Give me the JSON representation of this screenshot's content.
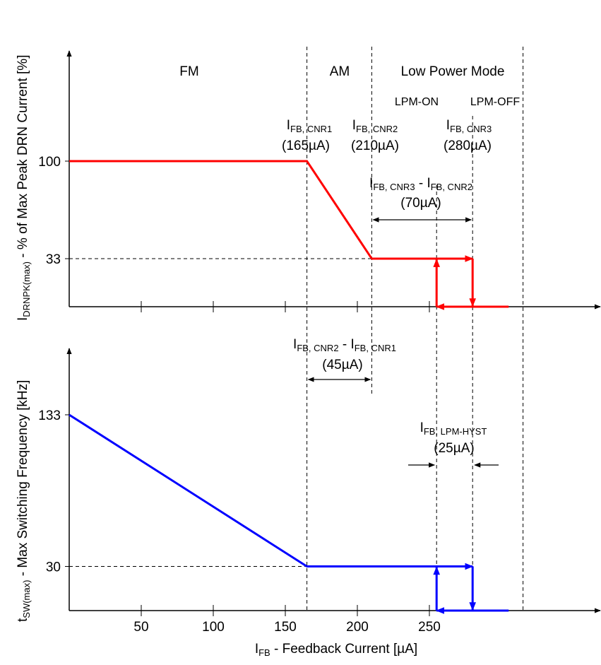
{
  "chart_data": [
    {
      "type": "line",
      "name": "peak-current-panel",
      "ylabel": {
        "main": "I",
        "sub": "DRNPK(max)",
        "rest": " - % of Max Peak DRN Current [%]"
      },
      "yticks": [
        100,
        33
      ],
      "series": [
        {
          "name": "",
          "color": "#ff0000",
          "points": [
            [
              0,
              100
            ],
            [
              165,
              100
            ],
            [
              210,
              33
            ],
            [
              280,
              33
            ]
          ]
        }
      ],
      "hysteresis": {
        "up_at": 255,
        "down_at": 280,
        "return_to": 305
      }
    },
    {
      "type": "line",
      "name": "switching-frequency-panel",
      "ylabel": {
        "main": "t",
        "sub": "SW(max)",
        "rest": " - Max Switching Frequency [kHz]"
      },
      "yticks": [
        133,
        30
      ],
      "series": [
        {
          "name": "",
          "color": "#0000ff",
          "points": [
            [
              0,
              133
            ],
            [
              165,
              30
            ],
            [
              280,
              30
            ]
          ]
        }
      ],
      "hysteresis": {
        "up_at": 255,
        "down_at": 280,
        "return_to": 305
      }
    }
  ],
  "xaxis": {
    "label": {
      "main": "I",
      "sub": "FB",
      "rest": " - Feedback Current [µA]"
    },
    "ticks": [
      50,
      100,
      150,
      200,
      250
    ],
    "xlim": [
      0,
      360
    ]
  },
  "regions": {
    "fm": "FM",
    "am": "AM",
    "lpm": "Low Power Mode",
    "lpm_on": "LPM-ON",
    "lpm_off": "LPM-OFF"
  },
  "boundaries": [
    165,
    210,
    255,
    280,
    315
  ],
  "annotations": {
    "cnr1": {
      "main": "I",
      "sub": "FB, CNR1",
      "value": "(165µA)"
    },
    "cnr2": {
      "main": "I",
      "sub": "FB, CNR2",
      "value": "(210µA)"
    },
    "cnr3": {
      "main": "I",
      "sub": "FB, CNR3",
      "value": "(280µA)"
    },
    "cnr3_minus_cnr2": {
      "a_main": "I",
      "a_sub": "FB, CNR3",
      "sep": " - ",
      "b_main": "I",
      "b_sub": "FB, CNR2",
      "value": "(70µA)"
    },
    "cnr2_minus_cnr1": {
      "a_main": "I",
      "a_sub": "FB, CNR2",
      "sep": " - ",
      "b_main": "I",
      "b_sub": "FB, CNR1",
      "value": "(45µA)"
    },
    "lpm_hyst": {
      "main": "I",
      "sub": "FB, LPM-HYST",
      "value": "(25µA)"
    }
  }
}
